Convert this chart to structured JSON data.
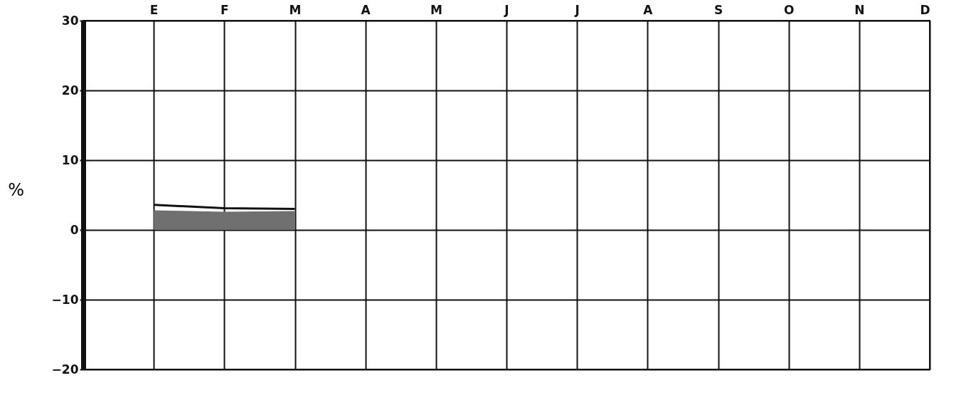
{
  "chart_data": {
    "type": "line",
    "ylabel": "%",
    "categories": [
      null,
      "E",
      "F",
      "M",
      "A",
      "M",
      "J",
      "J",
      "A",
      "S",
      "O",
      "N",
      "D"
    ],
    "series": [
      {
        "type": "area",
        "color": "#707070",
        "values": [
          null,
          2.8,
          2.6,
          2.7,
          null,
          null,
          null,
          null,
          null,
          null,
          null,
          null,
          null
        ]
      },
      {
        "type": "line",
        "color": "#111111",
        "values": [
          null,
          3.6,
          3.1,
          3.0,
          null,
          null,
          null,
          null,
          null,
          null,
          null,
          null,
          null
        ]
      }
    ],
    "ylim": [
      -20,
      30
    ],
    "yticks": [
      -20,
      -10,
      0,
      10,
      20,
      30
    ],
    "grid": true,
    "marker": "none",
    "line_style": "solid"
  }
}
